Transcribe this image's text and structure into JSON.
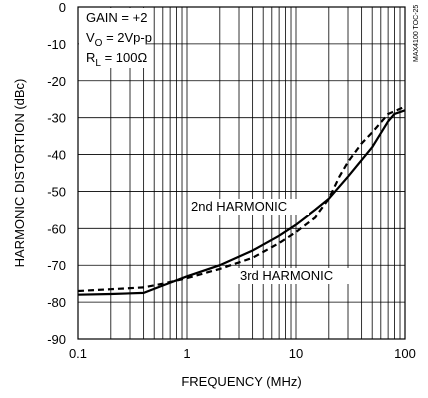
{
  "chart_data": {
    "type": "line",
    "xscale": "log",
    "xlim": [
      0.1,
      100
    ],
    "ylim": [
      -90,
      0
    ],
    "xlabel": "FREQUENCY (MHz)",
    "ylabel": "HARMONIC DISTORTION (dBc)",
    "x_ticks": [
      "0.1",
      "1",
      "10",
      "100"
    ],
    "y_ticks": [
      "0",
      "-10",
      "-20",
      "-30",
      "-40",
      "-50",
      "-60",
      "-70",
      "-80",
      "-90"
    ],
    "grid": true,
    "conditions": [
      "GAIN = +2",
      "V",
      "O",
      " = 2Vp-p",
      "R",
      "L",
      " = 100Ω"
    ],
    "watermark": "MAX4100 TOC-25",
    "series": [
      {
        "name": "2nd HARMONIC",
        "style": "solid",
        "x": [
          0.1,
          0.2,
          0.4,
          0.6,
          1,
          2,
          4,
          7,
          10,
          15,
          20,
          30,
          50,
          70,
          80,
          100
        ],
        "y": [
          -78,
          -77.8,
          -77.5,
          -75.5,
          -73,
          -70,
          -66,
          -62,
          -59,
          -55,
          -52,
          -46,
          -38,
          -31,
          -29,
          -28
        ]
      },
      {
        "name": "3rd HARMONIC",
        "style": "dashed",
        "x": [
          0.1,
          0.2,
          0.4,
          0.6,
          1,
          2,
          4,
          7,
          10,
          15,
          20,
          25,
          30,
          40,
          50,
          70,
          100
        ],
        "y": [
          -77,
          -76.5,
          -76,
          -75,
          -73.5,
          -71,
          -68,
          -64,
          -61,
          -57,
          -52,
          -46,
          -42,
          -37,
          -34,
          -29,
          -27
        ]
      }
    ],
    "annotations": [
      "2nd HARMONIC",
      "3rd HARMONIC"
    ]
  }
}
